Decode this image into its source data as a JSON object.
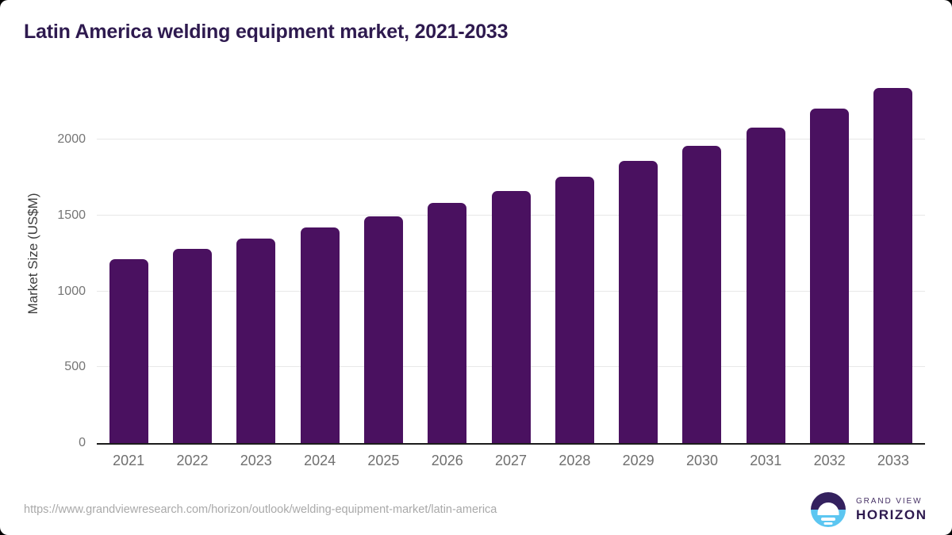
{
  "title": "Latin America welding equipment market, 2021-2033",
  "chart_data": {
    "type": "bar",
    "title": "Latin America welding equipment market, 2021-2033",
    "categories": [
      "2021",
      "2022",
      "2023",
      "2024",
      "2025",
      "2026",
      "2027",
      "2028",
      "2029",
      "2030",
      "2031",
      "2032",
      "2033"
    ],
    "values": [
      1212,
      1277,
      1347,
      1418,
      1494,
      1580,
      1661,
      1752,
      1857,
      1960,
      2078,
      2203,
      2340
    ],
    "xlabel": "",
    "ylabel": "Market Size (US$M)",
    "ylim": [
      0,
      2418
    ],
    "yticks": [
      0,
      500,
      1000,
      1500,
      2000
    ],
    "grid": true,
    "legend": false,
    "bar_color": "#4a1160",
    "gridline_color": "#e8e8e8",
    "axis_line_color": "#1c1c1c",
    "tick_label_color": "#757575"
  },
  "colors": {
    "title_text": "#2e1a4f",
    "background": "#ffffff",
    "logo_purple": "#34215e",
    "logo_blue": "#5cc6f1"
  },
  "footer": {
    "source_url": "https://www.grandviewresearch.com/horizon/outlook/welding-equipment-market/latin-america",
    "logo": {
      "brand_top": "GRAND VIEW",
      "brand_bottom": "HORIZON",
      "icon": "horizon-sun-icon"
    }
  }
}
